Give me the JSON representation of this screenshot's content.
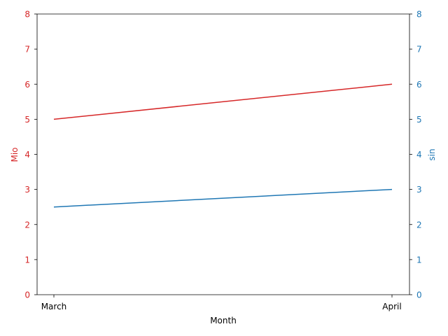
{
  "chart_data": {
    "type": "line",
    "xlabel": "Month",
    "categories": [
      "March",
      "April"
    ],
    "left_axis": {
      "label": "Mio",
      "color": "#d62728",
      "ylim": [
        0,
        8
      ],
      "ticks": [
        "0",
        "1",
        "2",
        "3",
        "4",
        "5",
        "6",
        "7",
        "8"
      ]
    },
    "right_axis": {
      "label": "sin",
      "color": "#1f77b4",
      "ylim": [
        0,
        8
      ],
      "ticks": [
        "0",
        "1",
        "2",
        "3",
        "4",
        "5",
        "6",
        "7",
        "8"
      ]
    },
    "series": [
      {
        "axis": "left",
        "color": "#d62728",
        "values": [
          5,
          6
        ]
      },
      {
        "axis": "right",
        "color": "#1f77b4",
        "values": [
          2.5,
          3
        ]
      }
    ],
    "grid": false
  }
}
